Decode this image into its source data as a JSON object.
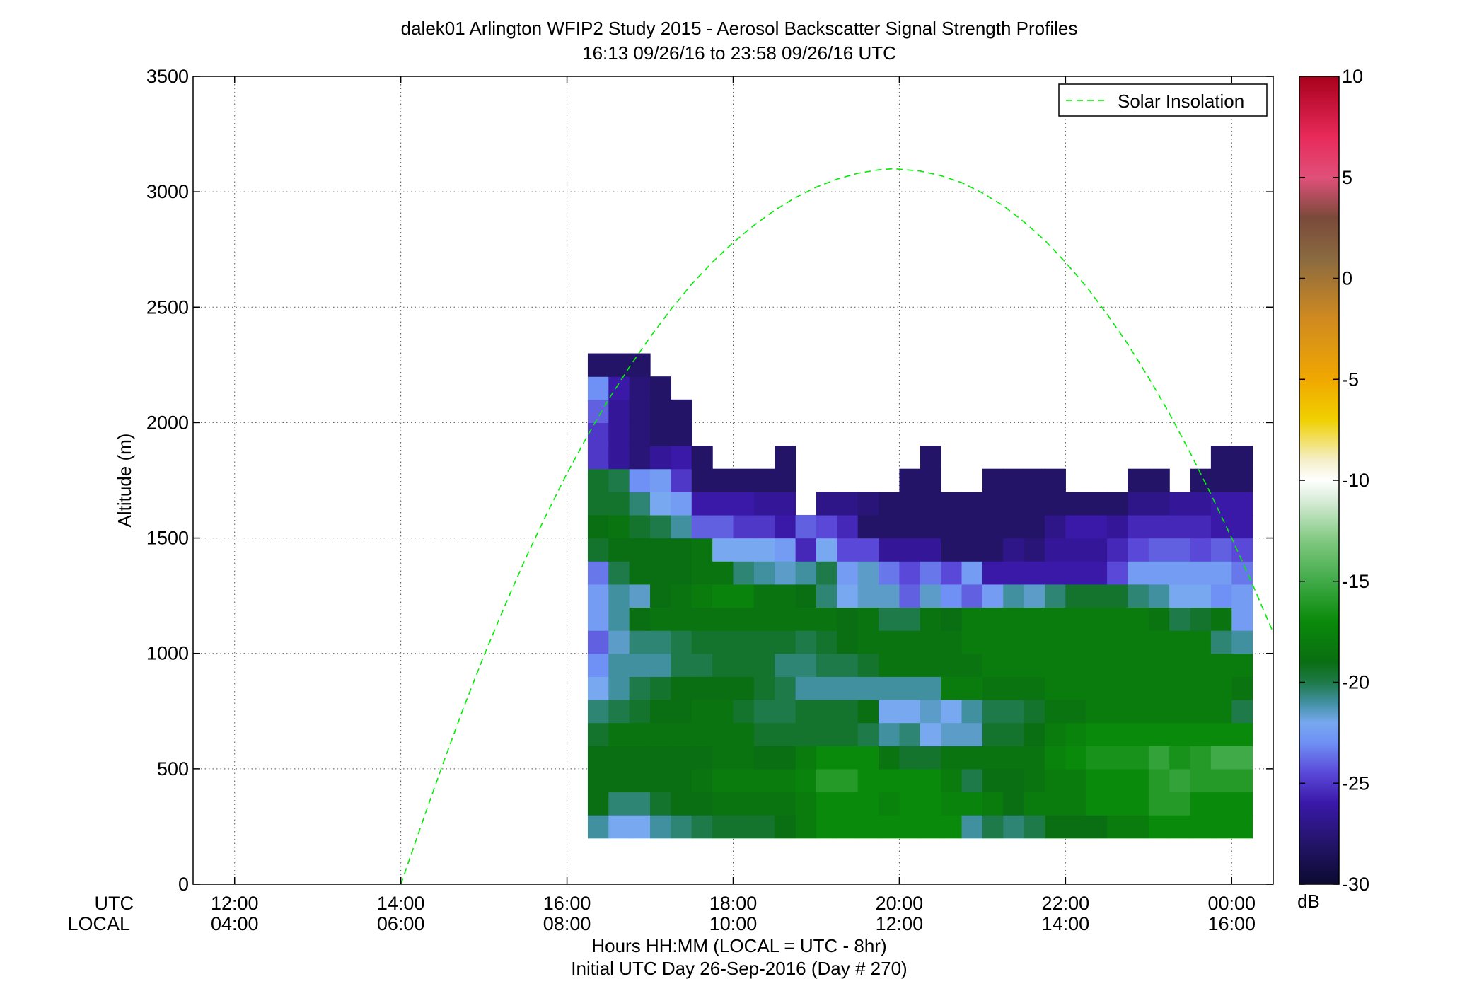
{
  "chart_data": {
    "type": "heatmap",
    "title": "dalek01 Arlington WFIP2 Study 2015 - Aerosol Backscatter Signal Strength Profiles",
    "subtitle": "16:13 09/26/16 to 23:58 09/26/16  UTC",
    "ylabel": "Altitude (m)",
    "xlabel": "Hours HH:MM  (LOCAL = UTC - 8hr)",
    "xlabel2": "Initial UTC Day 26-Sep-2016 (Day # 270)",
    "utc_row_label": "UTC",
    "local_row_label": "LOCAL",
    "colorbar_unit": "dB",
    "legend": {
      "label": "Solar Insolation",
      "position": "top-right",
      "color": "#00ee00"
    },
    "xlim_hours": [
      11.5,
      24.5
    ],
    "ylim": [
      0,
      3500
    ],
    "grid": true,
    "x_ticks": [
      {
        "hour": 12,
        "utc": "12:00",
        "local": "04:00"
      },
      {
        "hour": 14,
        "utc": "14:00",
        "local": "06:00"
      },
      {
        "hour": 16,
        "utc": "16:00",
        "local": "08:00"
      },
      {
        "hour": 18,
        "utc": "18:00",
        "local": "10:00"
      },
      {
        "hour": 20,
        "utc": "20:00",
        "local": "12:00"
      },
      {
        "hour": 22,
        "utc": "22:00",
        "local": "14:00"
      },
      {
        "hour": 24,
        "utc": "00:00",
        "local": "16:00"
      }
    ],
    "y_ticks": [
      "0",
      "500",
      "1000",
      "1500",
      "2000",
      "2500",
      "3000",
      "3500"
    ],
    "colorbar_range": [
      -30,
      10
    ],
    "colorbar_ticks": [
      "-30",
      "-25",
      "-20",
      "-15",
      "-10",
      "-5",
      "0",
      "5",
      "10"
    ],
    "colormap": [
      [
        -30,
        "#0b0a30"
      ],
      [
        -28,
        "#231468"
      ],
      [
        -26,
        "#3a18a8"
      ],
      [
        -24.5,
        "#5a48d8"
      ],
      [
        -23,
        "#6f90f4"
      ],
      [
        -22,
        "#78a8f0"
      ],
      [
        -21,
        "#4090a0"
      ],
      [
        -20,
        "#1e7a48"
      ],
      [
        -19,
        "#0a6e12"
      ],
      [
        -17,
        "#0a8a0a"
      ],
      [
        -15,
        "#40aa48"
      ],
      [
        -13,
        "#80c880"
      ],
      [
        -11,
        "#d8ecd8"
      ],
      [
        -10,
        "#ffffff"
      ],
      [
        -9,
        "#f4efc8"
      ],
      [
        -7,
        "#f0d000"
      ],
      [
        -5,
        "#f0a800"
      ],
      [
        -2,
        "#d08a20"
      ],
      [
        1,
        "#8a6a40"
      ],
      [
        3,
        "#7a4a3a"
      ],
      [
        5,
        "#e0507a"
      ],
      [
        7,
        "#e82a5a"
      ],
      [
        10,
        "#a8001c"
      ]
    ],
    "x_bin_start_hour": 16.25,
    "x_bin_width_hours": 0.25,
    "y_bin_start_m": 200,
    "y_bin_height_m": 100,
    "cells_db_rows_bottom_to_top": [
      [
        -21,
        -22,
        -22,
        -21,
        -20.5,
        -20,
        -19.5,
        -19.5,
        -19.5,
        -19,
        -18,
        -17,
        -17,
        -17,
        -17,
        -17,
        -17,
        -17,
        -21,
        -20,
        -20.5,
        -20,
        -19,
        -19,
        -19,
        -18,
        -18,
        -17,
        -17,
        -17,
        -17,
        -17
      ],
      [
        -19,
        -20.5,
        -20.5,
        -19.5,
        -19,
        -19,
        -18.5,
        -18.5,
        -18.5,
        -18.5,
        -18,
        -17,
        -17,
        -17,
        -17.5,
        -17,
        -17,
        -17.5,
        -17.5,
        -18,
        -19,
        -18,
        -18,
        -18,
        -17,
        -17,
        -17,
        -16,
        -16,
        -17,
        -17,
        -17
      ],
      [
        -19,
        -19,
        -19,
        -19,
        -19,
        -18.5,
        -18,
        -18,
        -18,
        -18,
        -17.5,
        -16,
        -16,
        -17,
        -17,
        -17,
        -17,
        -18,
        -20,
        -19,
        -19,
        -18.5,
        -18,
        -18,
        -17,
        -17,
        -17,
        -16,
        -15.5,
        -16,
        -16,
        -16
      ],
      [
        -19,
        -19,
        -19,
        -19,
        -19,
        -19,
        -18.5,
        -18.5,
        -19,
        -19,
        -18,
        -17,
        -17,
        -17,
        -18.5,
        -19.5,
        -19.5,
        -18.5,
        -18.5,
        -18.5,
        -18.5,
        -18.5,
        -17.5,
        -17,
        -16.5,
        -16.5,
        -16.5,
        -15.5,
        -16.5,
        -16,
        -15,
        -15
      ],
      [
        -19.5,
        -18.5,
        -18.5,
        -18.5,
        -18.5,
        -18.5,
        -18.5,
        -18.5,
        -19.5,
        -19.5,
        -19.5,
        -19.5,
        -19.5,
        -20,
        -21,
        -20.5,
        -22,
        -21.5,
        -21.5,
        -19.5,
        -19.5,
        -19,
        -18,
        -17.5,
        -17,
        -17,
        -17,
        -17,
        -17,
        -17,
        -17,
        -17
      ],
      [
        -20.5,
        -20,
        -19.5,
        -19,
        -19,
        -18.5,
        -18.5,
        -19.5,
        -20,
        -20,
        -19.5,
        -19.5,
        -19.5,
        -19,
        -22,
        -22,
        -21.5,
        -22,
        -21,
        -20,
        -20,
        -19.5,
        -18.5,
        -18.5,
        -18,
        -18,
        -18,
        -18,
        -18,
        -18,
        -18,
        -20
      ],
      [
        -22,
        -21,
        -20,
        -19.5,
        -19,
        -19,
        -19,
        -19,
        -19.5,
        -20,
        -21,
        -21,
        -21,
        -21,
        -21,
        -21,
        -21,
        -18,
        -18,
        -18.5,
        -18.5,
        -18.5,
        -18,
        -18,
        -18,
        -18,
        -18,
        -18,
        -18,
        -18,
        -18,
        -18.5
      ],
      [
        -23,
        -21,
        -21,
        -21,
        -20,
        -20,
        -19.5,
        -19.5,
        -19.5,
        -20.5,
        -20.5,
        -20,
        -20,
        -19.5,
        -18.5,
        -18.5,
        -18.5,
        -18.5,
        -18.5,
        -18,
        -18,
        -18,
        -18,
        -18,
        -18,
        -18,
        -18,
        -18,
        -18,
        -18,
        -18,
        -18
      ],
      [
        -24,
        -21.5,
        -20.5,
        -20.5,
        -20,
        -19.5,
        -19.5,
        -19.5,
        -19.5,
        -19.5,
        -20,
        -19.5,
        -19,
        -18.5,
        -18.5,
        -18.5,
        -18.5,
        -18.5,
        -18,
        -18,
        -18,
        -18,
        -18,
        -18,
        -18,
        -18,
        -18,
        -18,
        -18,
        -18,
        -20.5,
        -21
      ],
      [
        -22.5,
        -21,
        -19,
        -18.5,
        -18.5,
        -18.5,
        -18.5,
        -18.5,
        -18.5,
        -18.5,
        -18.5,
        -18.5,
        -19,
        -18.5,
        -20,
        -20,
        -18.5,
        -19,
        -18,
        -18,
        -18,
        -18,
        -18,
        -18,
        -18,
        -18,
        -18,
        -18.5,
        -20,
        -19.5,
        -18.5,
        -22.5
      ],
      [
        -22.5,
        -21,
        -21.5,
        -19,
        -18.5,
        -18,
        -17.5,
        -17.5,
        -18.5,
        -18.5,
        -19,
        -20.5,
        -22,
        -21.5,
        -21.5,
        -24,
        -21.5,
        -23,
        -24,
        -22.5,
        -21,
        -21.5,
        -20.5,
        -19.5,
        -19.5,
        -19.5,
        -20.5,
        -21,
        -22,
        -22,
        -23,
        -22.5
      ],
      [
        -23.5,
        -20,
        -19,
        -19,
        -19,
        -18.5,
        -18.5,
        -20.5,
        -21,
        -21.5,
        -21,
        -20,
        -22.5,
        -21.5,
        -23.5,
        -24.5,
        -23.5,
        -24.5,
        -22.5,
        -26,
        -26,
        -26,
        -26,
        -26,
        -26,
        -24.5,
        -22.5,
        -22.5,
        -22.5,
        -22.5,
        -22.5,
        -23.5
      ],
      [
        -19.5,
        -19,
        -19,
        -19,
        -19,
        -18.5,
        -22,
        -22,
        -22,
        -22.5,
        -25.5,
        -22,
        -24.5,
        -24.5,
        -26.5,
        -26.5,
        -26.5,
        -28,
        -28,
        -28,
        -27,
        -27.5,
        -26.5,
        -26.5,
        -26.5,
        -25.5,
        -24.5,
        -24,
        -24,
        -24.5,
        -24,
        -24.5
      ],
      [
        -19,
        -18.5,
        -19.5,
        -20,
        -21,
        -24,
        -24,
        -25,
        -25,
        -26,
        -24,
        -24.5,
        -25.5,
        -28,
        -28,
        -28,
        -28,
        -28,
        -28,
        -28,
        -28,
        -28,
        -27,
        -26,
        -26,
        -26.5,
        -25.5,
        -25.5,
        -25.5,
        -25.5,
        -26,
        -26
      ],
      [
        -19.5,
        -19.5,
        -20.5,
        -22,
        -22.5,
        -26,
        -26,
        -26,
        -26.5,
        -26.5,
        null,
        -27,
        -27,
        -27.5,
        -28,
        -28,
        -28,
        -28,
        -28,
        -28,
        -28,
        -28,
        -28,
        -28,
        -28,
        -28,
        -27,
        -27,
        -26.5,
        -26.5,
        -26,
        -26
      ],
      [
        -19.5,
        -20,
        -23,
        -22.5,
        -25,
        -28,
        -28,
        -28,
        -28,
        -28,
        null,
        null,
        null,
        null,
        null,
        -28,
        -28,
        null,
        null,
        -28,
        -28,
        -28,
        -28,
        null,
        null,
        null,
        -28,
        -28,
        null,
        -28,
        -28,
        -28
      ],
      [
        -25,
        -26.5,
        -27.5,
        -26.5,
        -26,
        -28,
        null,
        null,
        null,
        -28,
        null,
        null,
        null,
        null,
        null,
        null,
        -28,
        null,
        null,
        null,
        null,
        null,
        null,
        null,
        null,
        null,
        null,
        null,
        null,
        null,
        -28,
        -28
      ],
      [
        -25,
        -26.5,
        -27.5,
        -28,
        -28,
        null,
        null,
        null,
        null,
        null,
        null,
        null,
        null,
        null,
        null,
        null,
        null,
        null,
        null,
        null,
        null,
        null,
        null,
        null,
        null,
        null,
        null,
        null,
        null,
        null,
        null,
        null
      ],
      [
        -24,
        -26.5,
        -27.5,
        -28,
        -28,
        null,
        null,
        null,
        null,
        null,
        null,
        null,
        null,
        null,
        null,
        null,
        null,
        null,
        null,
        null,
        null,
        null,
        null,
        null,
        null,
        null,
        null,
        null,
        null,
        null,
        null,
        null
      ],
      [
        -23,
        -26,
        -27.5,
        -28,
        null,
        null,
        null,
        null,
        null,
        null,
        null,
        null,
        null,
        null,
        null,
        null,
        null,
        null,
        null,
        null,
        null,
        null,
        null,
        null,
        null,
        null,
        null,
        null,
        null,
        null,
        null,
        null
      ],
      [
        -28,
        -28,
        -28,
        null,
        null,
        null,
        null,
        null,
        null,
        null,
        null,
        null,
        null,
        null,
        null,
        null,
        null,
        null,
        null,
        null,
        null,
        null,
        null,
        null,
        null,
        null,
        null,
        null,
        null,
        null,
        null,
        null
      ]
    ],
    "solar_insolation_curve": [
      [
        14.0,
        0
      ],
      [
        14.25,
        260
      ],
      [
        14.5,
        515
      ],
      [
        14.75,
        760
      ],
      [
        15.0,
        990
      ],
      [
        15.25,
        1205
      ],
      [
        15.5,
        1410
      ],
      [
        15.75,
        1600
      ],
      [
        16.0,
        1780
      ],
      [
        16.25,
        1945
      ],
      [
        16.5,
        2100
      ],
      [
        16.75,
        2240
      ],
      [
        17.0,
        2370
      ],
      [
        17.25,
        2490
      ],
      [
        17.5,
        2600
      ],
      [
        17.75,
        2695
      ],
      [
        18.0,
        2780
      ],
      [
        18.25,
        2855
      ],
      [
        18.5,
        2920
      ],
      [
        18.75,
        2975
      ],
      [
        19.0,
        3020
      ],
      [
        19.25,
        3055
      ],
      [
        19.5,
        3080
      ],
      [
        19.75,
        3095
      ],
      [
        19.93,
        3100
      ],
      [
        20.25,
        3090
      ],
      [
        20.5,
        3070
      ],
      [
        20.75,
        3040
      ],
      [
        21.0,
        2995
      ],
      [
        21.25,
        2940
      ],
      [
        21.5,
        2870
      ],
      [
        21.75,
        2790
      ],
      [
        22.0,
        2695
      ],
      [
        22.25,
        2590
      ],
      [
        22.5,
        2470
      ],
      [
        22.75,
        2340
      ],
      [
        23.0,
        2195
      ],
      [
        23.25,
        2040
      ],
      [
        23.5,
        1870
      ],
      [
        23.75,
        1690
      ],
      [
        24.0,
        1500
      ],
      [
        24.25,
        1300
      ],
      [
        24.5,
        1090
      ]
    ]
  }
}
